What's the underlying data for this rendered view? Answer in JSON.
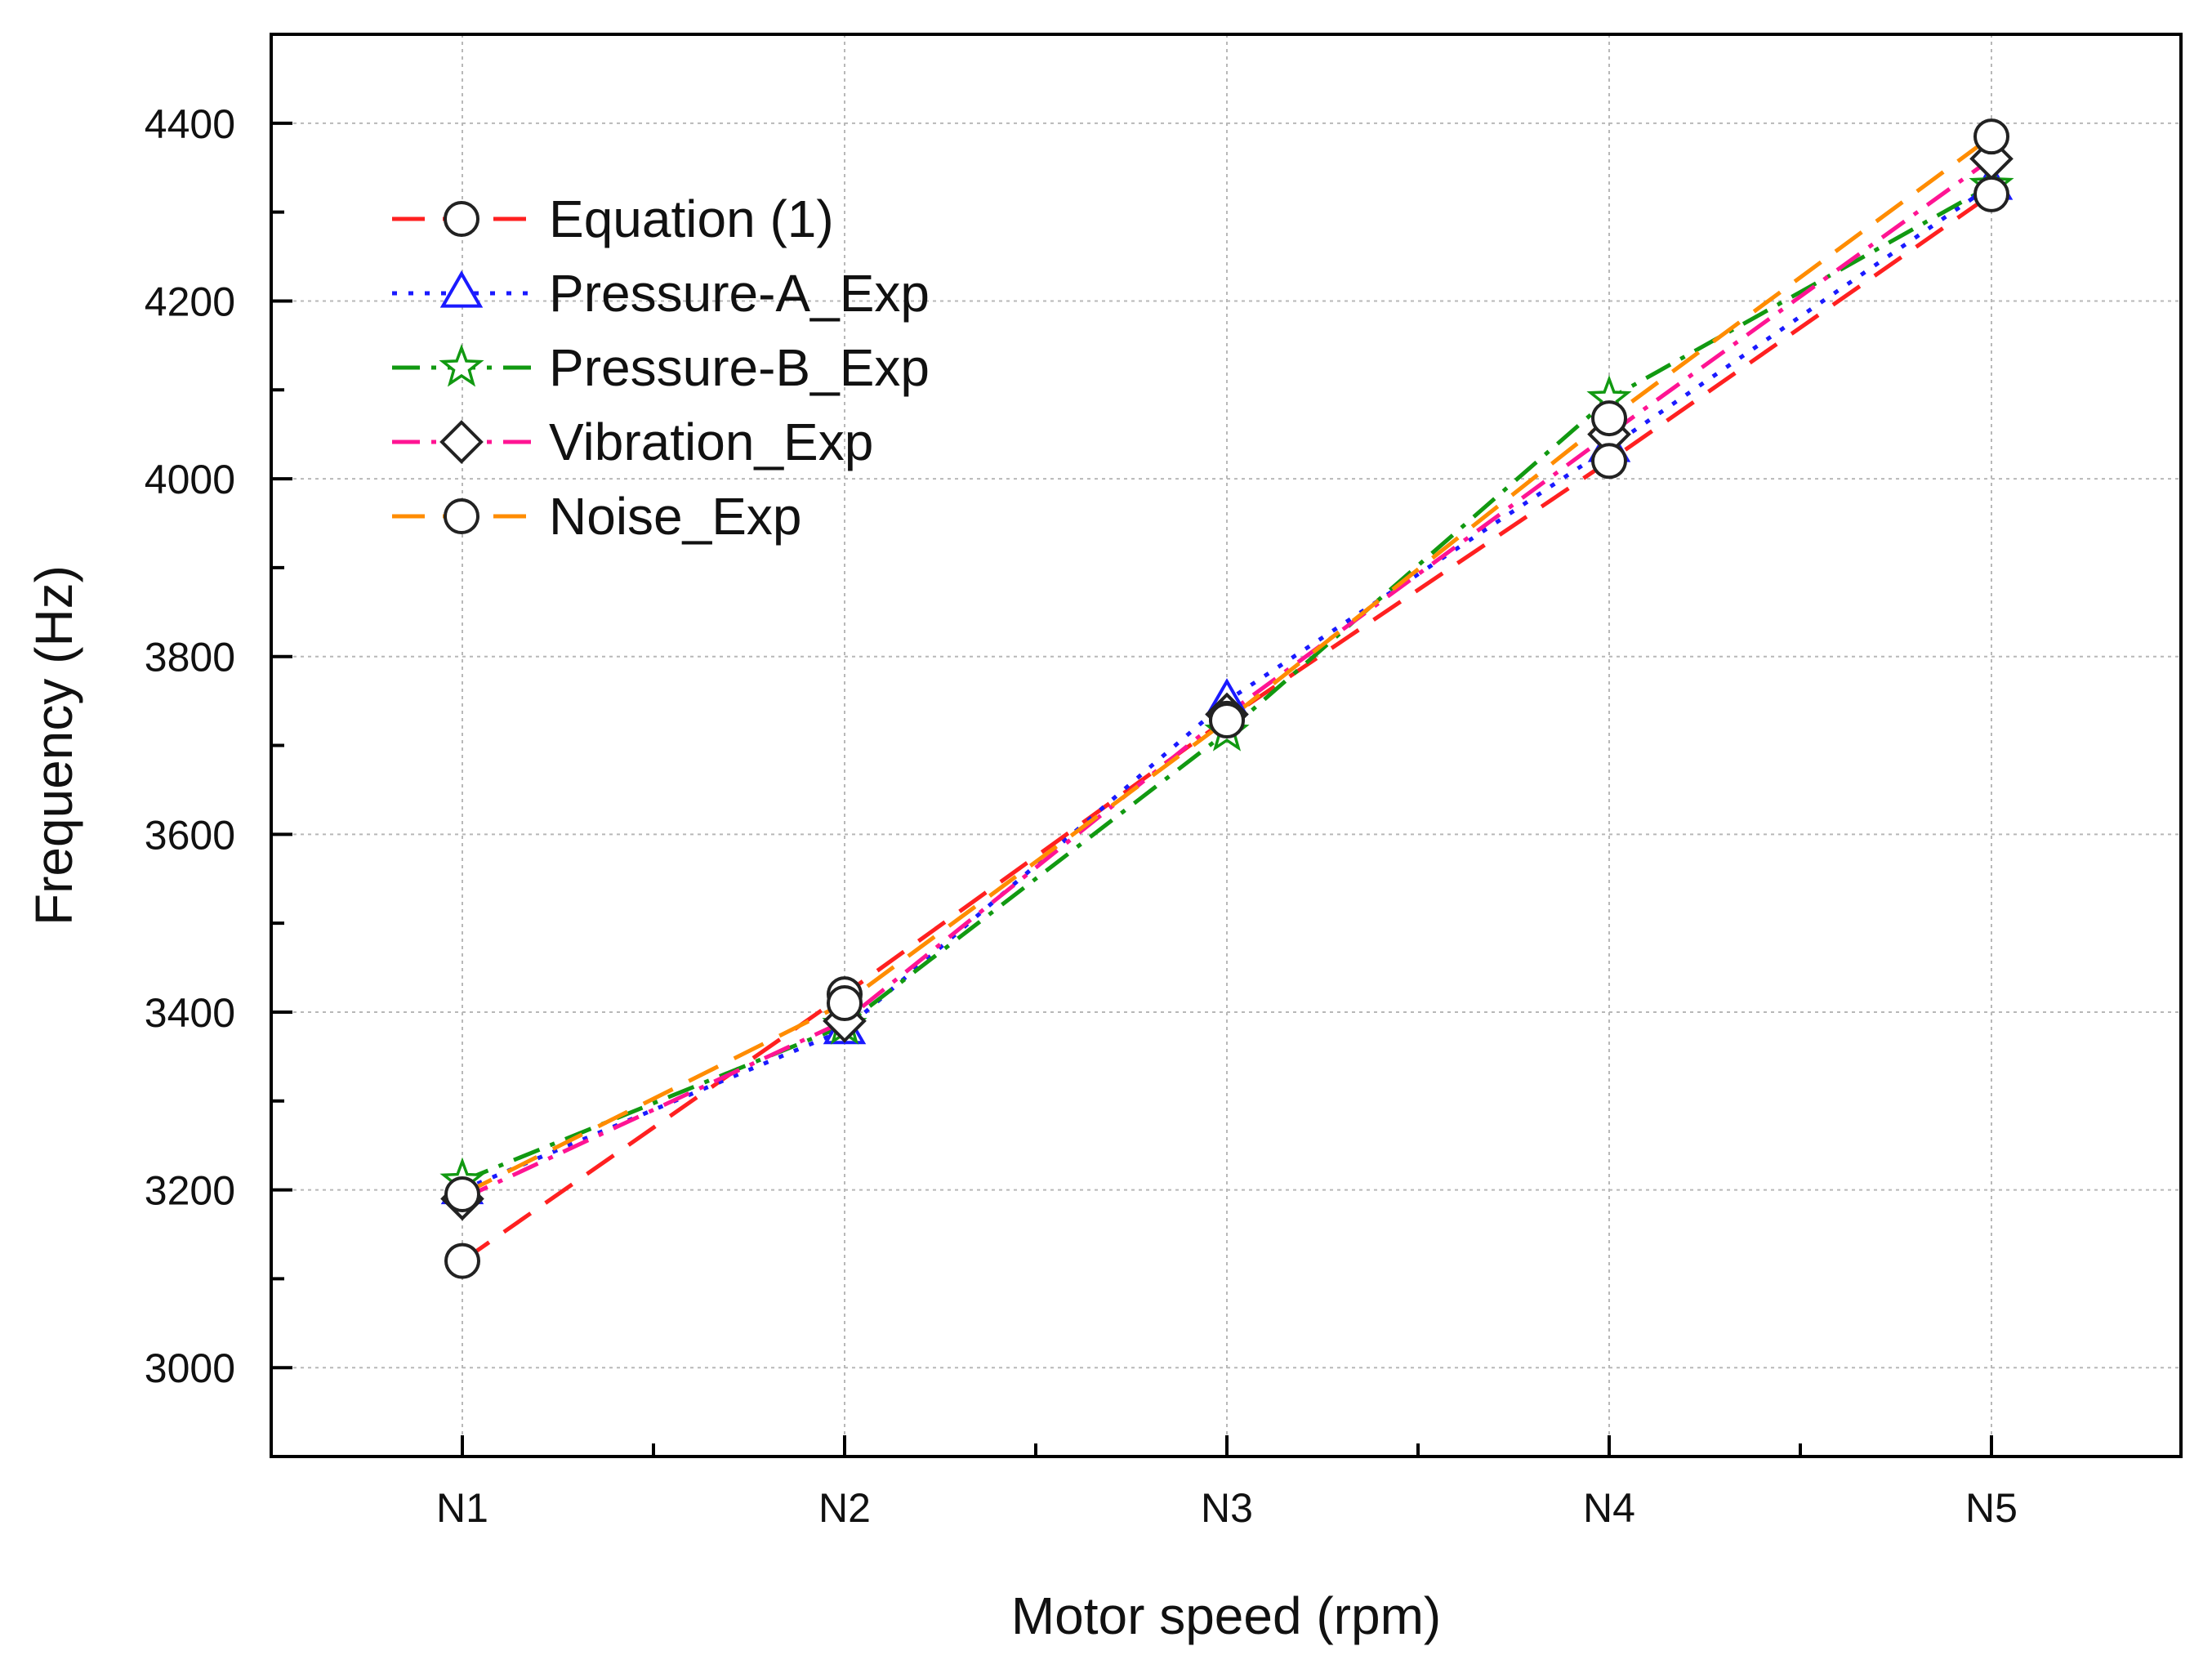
{
  "chart_data": {
    "type": "line",
    "title": "",
    "xlabel": "Motor speed (rpm)",
    "ylabel": "Frequency (Hz)",
    "categories": [
      "N1",
      "N2",
      "N3",
      "N4",
      "N5"
    ],
    "ylim": [
      2900,
      4500
    ],
    "yticks": [
      3000,
      3200,
      3400,
      3600,
      3800,
      4000,
      4200,
      4400
    ],
    "ytick_labels": [
      "3000",
      "3200",
      "3400",
      "3600",
      "3800",
      "4000",
      "4200",
      "4400"
    ],
    "grid": true,
    "legend_position": "top-left",
    "series": [
      {
        "name": "Equation (1)",
        "values": [
          3120,
          3420,
          3730,
          4020,
          4320
        ],
        "color": "#ff2020",
        "dash": "long-dash",
        "marker": "circle"
      },
      {
        "name": "Pressure-A_Exp",
        "values": [
          3200,
          3380,
          3750,
          4035,
          4330
        ],
        "color": "#1a1aff",
        "dash": "dot",
        "marker": "triangle"
      },
      {
        "name": "Pressure-B_Exp",
        "values": [
          3210,
          3385,
          3715,
          4090,
          4330
        ],
        "color": "#119911",
        "dash": "dash-dot",
        "marker": "star"
      },
      {
        "name": "Vibration_Exp",
        "values": [
          3190,
          3390,
          3735,
          4050,
          4360
        ],
        "color": "#ff1493",
        "dash": "dash-dot",
        "marker": "diamond"
      },
      {
        "name": "Noise_Exp",
        "values": [
          3195,
          3410,
          3728,
          4068,
          4385
        ],
        "color": "#ff8c00",
        "dash": "long-dash",
        "marker": "circle"
      }
    ]
  }
}
